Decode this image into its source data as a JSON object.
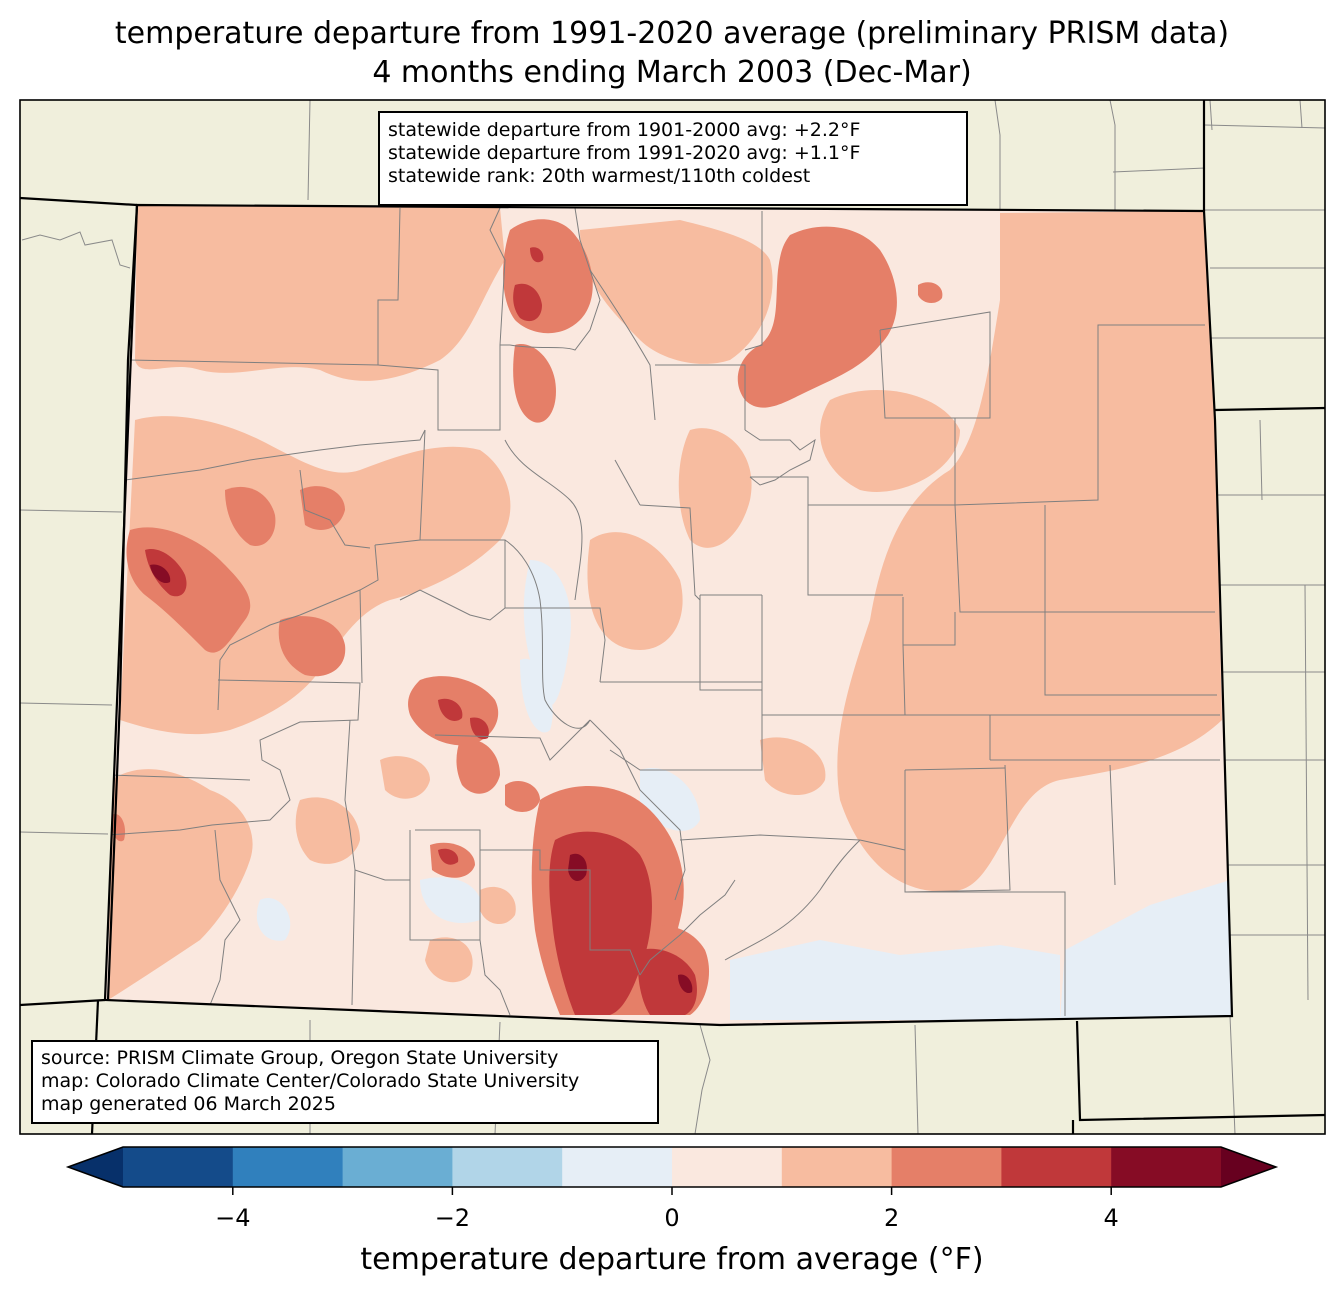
{
  "title": {
    "line1": "temperature departure from 1991-2020 average (preliminary PRISM data)",
    "line2": "4 months ending March 2003 (Dec-Mar)"
  },
  "stats": {
    "line1": "statewide departure from 1901-2000 avg: +2.2°F",
    "line2": "statewide departure from 1991-2020 avg: +1.1°F",
    "line3": "statewide rank: 20th warmest/110th coldest"
  },
  "credits": {
    "source": "source: PRISM Climate Group, Oregon State University",
    "map": "map: Colorado Climate Center/Colorado State University",
    "generated": "map generated 06 March 2025"
  },
  "colorbar": {
    "label": "temperature departure from average (°F)",
    "bounds": [
      -5,
      -4,
      -3,
      -2,
      -1,
      0,
      1,
      2,
      3,
      4,
      5
    ],
    "ticks": [
      "−4",
      "−2",
      "0",
      "2",
      "4"
    ],
    "colors": [
      "#144b8a",
      "#3080bd",
      "#6aaed3",
      "#b1d5e8",
      "#e6eef6",
      "#fae8df",
      "#f7bca0",
      "#e57f68",
      "#c0383a",
      "#860c25"
    ],
    "under_color": "#07306a",
    "over_color": "#67001f"
  },
  "map_colors": {
    "background": "#f0efdc",
    "neutral_warm": "#fae8df",
    "light_warm": "#f7bca0",
    "medium_warm": "#e57f68",
    "strong_warm": "#c0383a",
    "extreme_warm": "#860c25",
    "slightly_cool": "#e6eef6"
  }
}
